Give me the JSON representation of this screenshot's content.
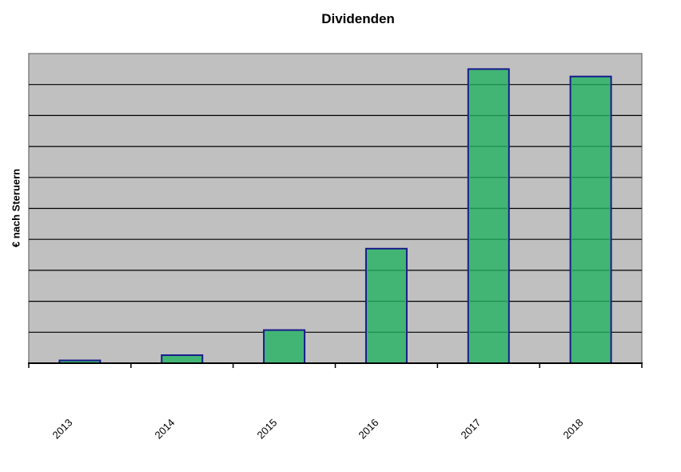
{
  "title": "Dividenden",
  "y_axis_label": "€ nach Steruern",
  "chart_data": {
    "type": "bar",
    "title": "Dividenden",
    "xlabel": "",
    "ylabel": "€ nach Steruern",
    "categories": [
      "2013",
      "2014",
      "2015",
      "2016",
      "2017",
      "2018"
    ],
    "values": [
      0.09,
      0.26,
      1.07,
      3.7,
      9.5,
      9.26
    ],
    "ylim": [
      0,
      10
    ],
    "gridline_step": 1,
    "y_tick_labels_visible": false,
    "grid": true,
    "legend": "none",
    "colors": {
      "bar_fill": "#42B575",
      "bar_border": "#1A1A8C",
      "plot_background": "#C0C0C0",
      "plot_border": "#808080",
      "gridline": "#000000",
      "gridline_over_bar": "#1E9150",
      "axis": "#000000",
      "text": "#000000",
      "page_background": "#FFFFFF"
    }
  }
}
